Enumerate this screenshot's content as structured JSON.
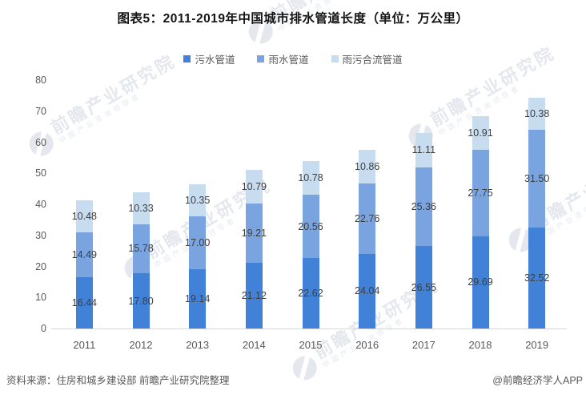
{
  "title": "图表5：2011-2019年中国城市排水管道长度（单位：万公里）",
  "legend": [
    {
      "label": "污水管道",
      "color": "#4182d8"
    },
    {
      "label": "雨水管道",
      "color": "#7aa4df"
    },
    {
      "label": "雨污合流管道",
      "color": "#c8dcf0"
    }
  ],
  "chart_data": {
    "type": "bar",
    "stacked": true,
    "title": "图表5：2011-2019年中国城市排水管道长度（单位：万公里）",
    "xlabel": "",
    "ylabel": "",
    "ylim": [
      0,
      80
    ],
    "yticks": [
      0,
      10,
      20,
      30,
      40,
      50,
      60,
      70,
      80
    ],
    "grid": false,
    "legend_position": "top-center",
    "value_label_decimals": 2,
    "categories": [
      "2011",
      "2012",
      "2013",
      "2014",
      "2015",
      "2016",
      "2017",
      "2018",
      "2019"
    ],
    "series": [
      {
        "name": "污水管道",
        "color": "#4182d8",
        "values": [
          16.44,
          17.8,
          19.14,
          21.12,
          22.62,
          24.04,
          26.55,
          29.69,
          32.52
        ]
      },
      {
        "name": "雨水管道",
        "color": "#7aa4df",
        "values": [
          14.49,
          15.78,
          17.0,
          19.21,
          20.56,
          22.76,
          25.36,
          27.75,
          31.5
        ]
      },
      {
        "name": "雨污合流管道",
        "color": "#c8dcf0",
        "values": [
          10.48,
          10.33,
          10.35,
          10.79,
          10.78,
          10.86,
          11.11,
          10.91,
          10.38
        ]
      }
    ]
  },
  "footer": {
    "source": "资料来源：住房和城乡建设部 前瞻产业研究院整理",
    "credit": "@前瞻经济学人APP"
  },
  "watermark": {
    "main": "前瞻产业研究院",
    "sub": "中国产业咨询领导者"
  },
  "colors": {
    "axis_line": "#d7d7d7",
    "axis_text": "#595959",
    "data_label_text": "#3d3d3d",
    "title_text": "#141414"
  }
}
